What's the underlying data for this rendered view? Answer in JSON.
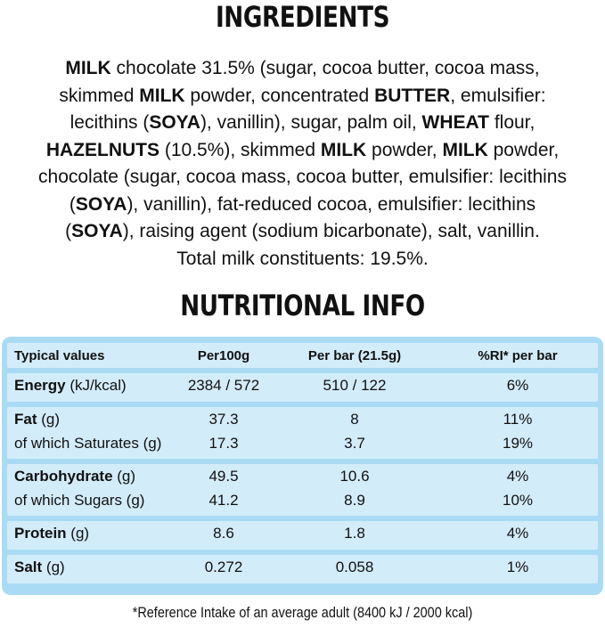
{
  "ingredients": {
    "title": "INGREDIENTS",
    "lines": [
      [
        {
          "text": "MILK",
          "bold": true
        },
        {
          "text": " chocolate 31.5% (sugar, cocoa butter, cocoa mass,",
          "bold": false
        }
      ],
      [
        {
          "text": "skimmed ",
          "bold": false
        },
        {
          "text": "MILK",
          "bold": true
        },
        {
          "text": " powder, concentrated ",
          "bold": false
        },
        {
          "text": "BUTTER",
          "bold": true
        },
        {
          "text": ", emulsifier:",
          "bold": false
        }
      ],
      [
        {
          "text": "lecithins (",
          "bold": false
        },
        {
          "text": "SOYA",
          "bold": true
        },
        {
          "text": "), vanillin), sugar, palm oil, ",
          "bold": false
        },
        {
          "text": "WHEAT",
          "bold": true
        },
        {
          "text": " flour,",
          "bold": false
        }
      ],
      [
        {
          "text": "HAZELNUTS",
          "bold": true
        },
        {
          "text": " (10.5%), skimmed ",
          "bold": false
        },
        {
          "text": "MILK",
          "bold": true
        },
        {
          "text": " powder, ",
          "bold": false
        },
        {
          "text": "MILK",
          "bold": true
        },
        {
          "text": " powder,",
          "bold": false
        }
      ],
      [
        {
          "text": "chocolate (sugar, cocoa mass, cocoa butter, emulsifier: lecithins",
          "bold": false
        }
      ],
      [
        {
          "text": "(",
          "bold": false
        },
        {
          "text": "SOYA",
          "bold": true
        },
        {
          "text": "), vanillin), fat-reduced cocoa, emulsifier: lecithins",
          "bold": false
        }
      ],
      [
        {
          "text": "(",
          "bold": false
        },
        {
          "text": "SOYA",
          "bold": true
        },
        {
          "text": "), raising agent (sodium bicarbonate), salt, vanillin.",
          "bold": false
        }
      ],
      [
        {
          "text": "Total milk constituents: 19.5%.",
          "bold": false
        }
      ]
    ]
  },
  "nutrition": {
    "title": "NUTRITIONAL INFO",
    "header": [
      "Typical values",
      "Per100g",
      "Per bar (21.5g)",
      "%RI* per bar"
    ],
    "groups": [
      [
        {
          "name": "Energy",
          "unit": " (kJ/kcal)",
          "per100g": "2384 / 572",
          "per_bar": "510 / 122",
          "ri": "6%"
        }
      ],
      [
        {
          "name": "Fat",
          "unit": " (g)",
          "per100g": "37.3",
          "per_bar": "8",
          "ri": "11%"
        },
        {
          "name": "of which Saturates (g)",
          "per100g": "17.3",
          "per_bar": "3.7",
          "ri": "19%"
        }
      ],
      [
        {
          "name": "Carbohydrate",
          "unit": " (g)",
          "per100g": "49.5",
          "per_bar": "10.6",
          "ri": "4%"
        },
        {
          "name": "of which Sugars (g)",
          "per100g": "41.2",
          "per_bar": "8.9",
          "ri": "10%"
        }
      ],
      [
        {
          "name": "Protein",
          "unit": " (g)",
          "per100g": "8.6",
          "per_bar": "1.8",
          "ri": "4%"
        }
      ],
      [
        {
          "name": "Salt",
          "unit": " (g)",
          "per100g": "0.272",
          "per_bar": "0.058",
          "ri": "1%"
        }
      ]
    ],
    "footnote": "*Reference Intake of an average adult (8400 kJ / 2000 kcal)"
  }
}
